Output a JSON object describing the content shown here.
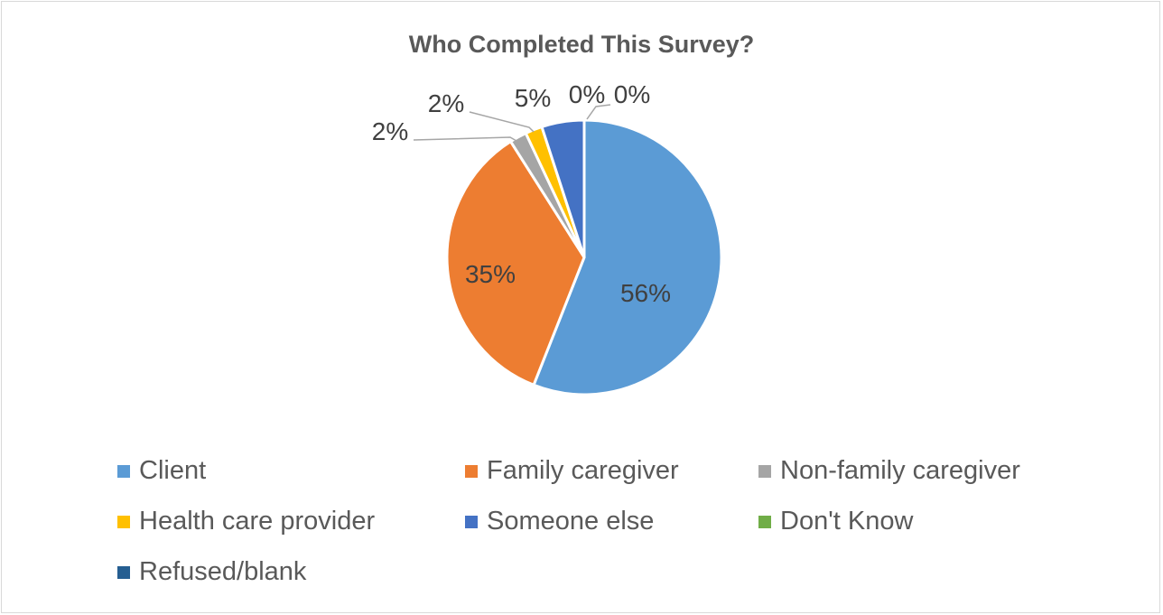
{
  "chart_data": {
    "type": "pie",
    "title": "Who Completed This Survey?",
    "categories": [
      "Client",
      "Family caregiver",
      "Non-family caregiver",
      "Health care provider",
      "Someone else",
      "Don't Know",
      "Refused/blank"
    ],
    "values": [
      56,
      35,
      2,
      2,
      5,
      0,
      0
    ],
    "data_labels": [
      "56%",
      "35%",
      "2%",
      "2%",
      "5%",
      "0%",
      "0%"
    ],
    "colors": [
      "#5B9BD5",
      "#ED7D31",
      "#A5A5A5",
      "#FFC000",
      "#4472C4",
      "#70AD47",
      "#255E91"
    ],
    "legend_placement": "bottom"
  }
}
